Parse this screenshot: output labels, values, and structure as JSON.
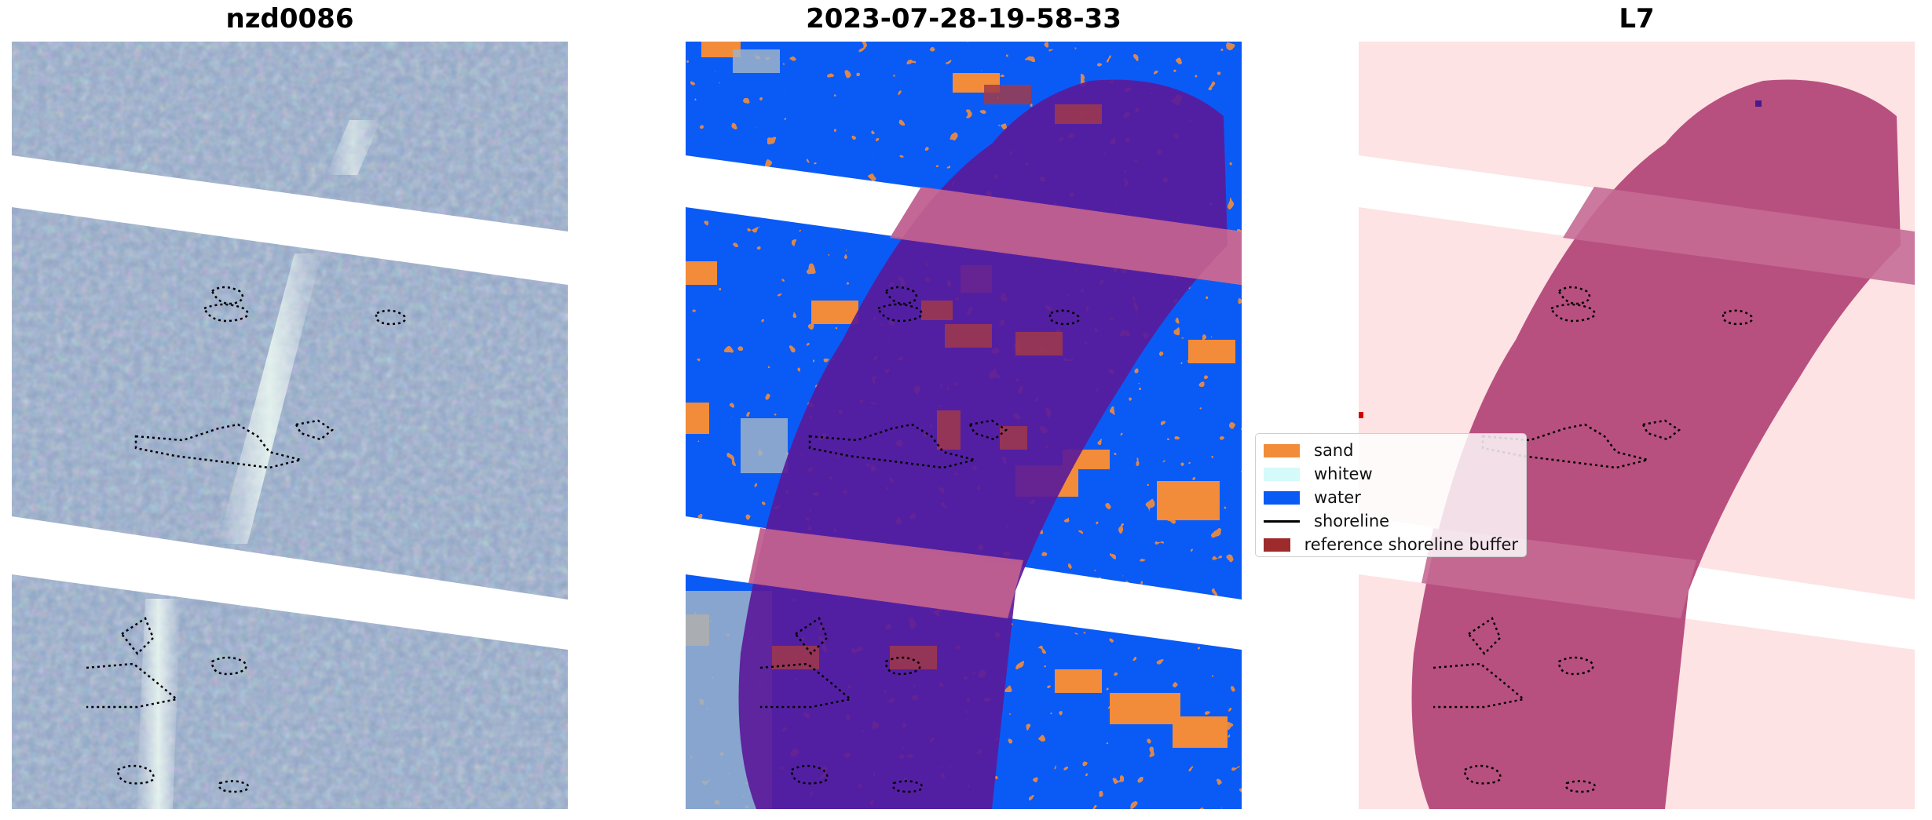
{
  "panels": [
    {
      "title": "nzd0086"
    },
    {
      "title": "2023-07-28-19-58-33"
    },
    {
      "title": "L7"
    }
  ],
  "legend": {
    "items": [
      {
        "label": "sand",
        "color": "#f28c3a",
        "kind": "patch"
      },
      {
        "label": "whitew",
        "color": "#d4fafa",
        "kind": "patch"
      },
      {
        "label": "water",
        "color": "#0a5bf5",
        "kind": "patch"
      },
      {
        "label": "shoreline",
        "color": "#000000",
        "kind": "line"
      },
      {
        "label": "reference shoreline buffer",
        "color": "#9e2b2b",
        "kind": "patch"
      }
    ]
  },
  "colors": {
    "rgb_base": "#8ea8c4",
    "water": "#0a5bf5",
    "sand": "#f28c3a",
    "whitewater": "#d4fafa",
    "buffer": "#5a1a9a",
    "buffer_light": "#c06090",
    "probability_bg": "#fde3e3",
    "probability_high": "#b8507f"
  }
}
